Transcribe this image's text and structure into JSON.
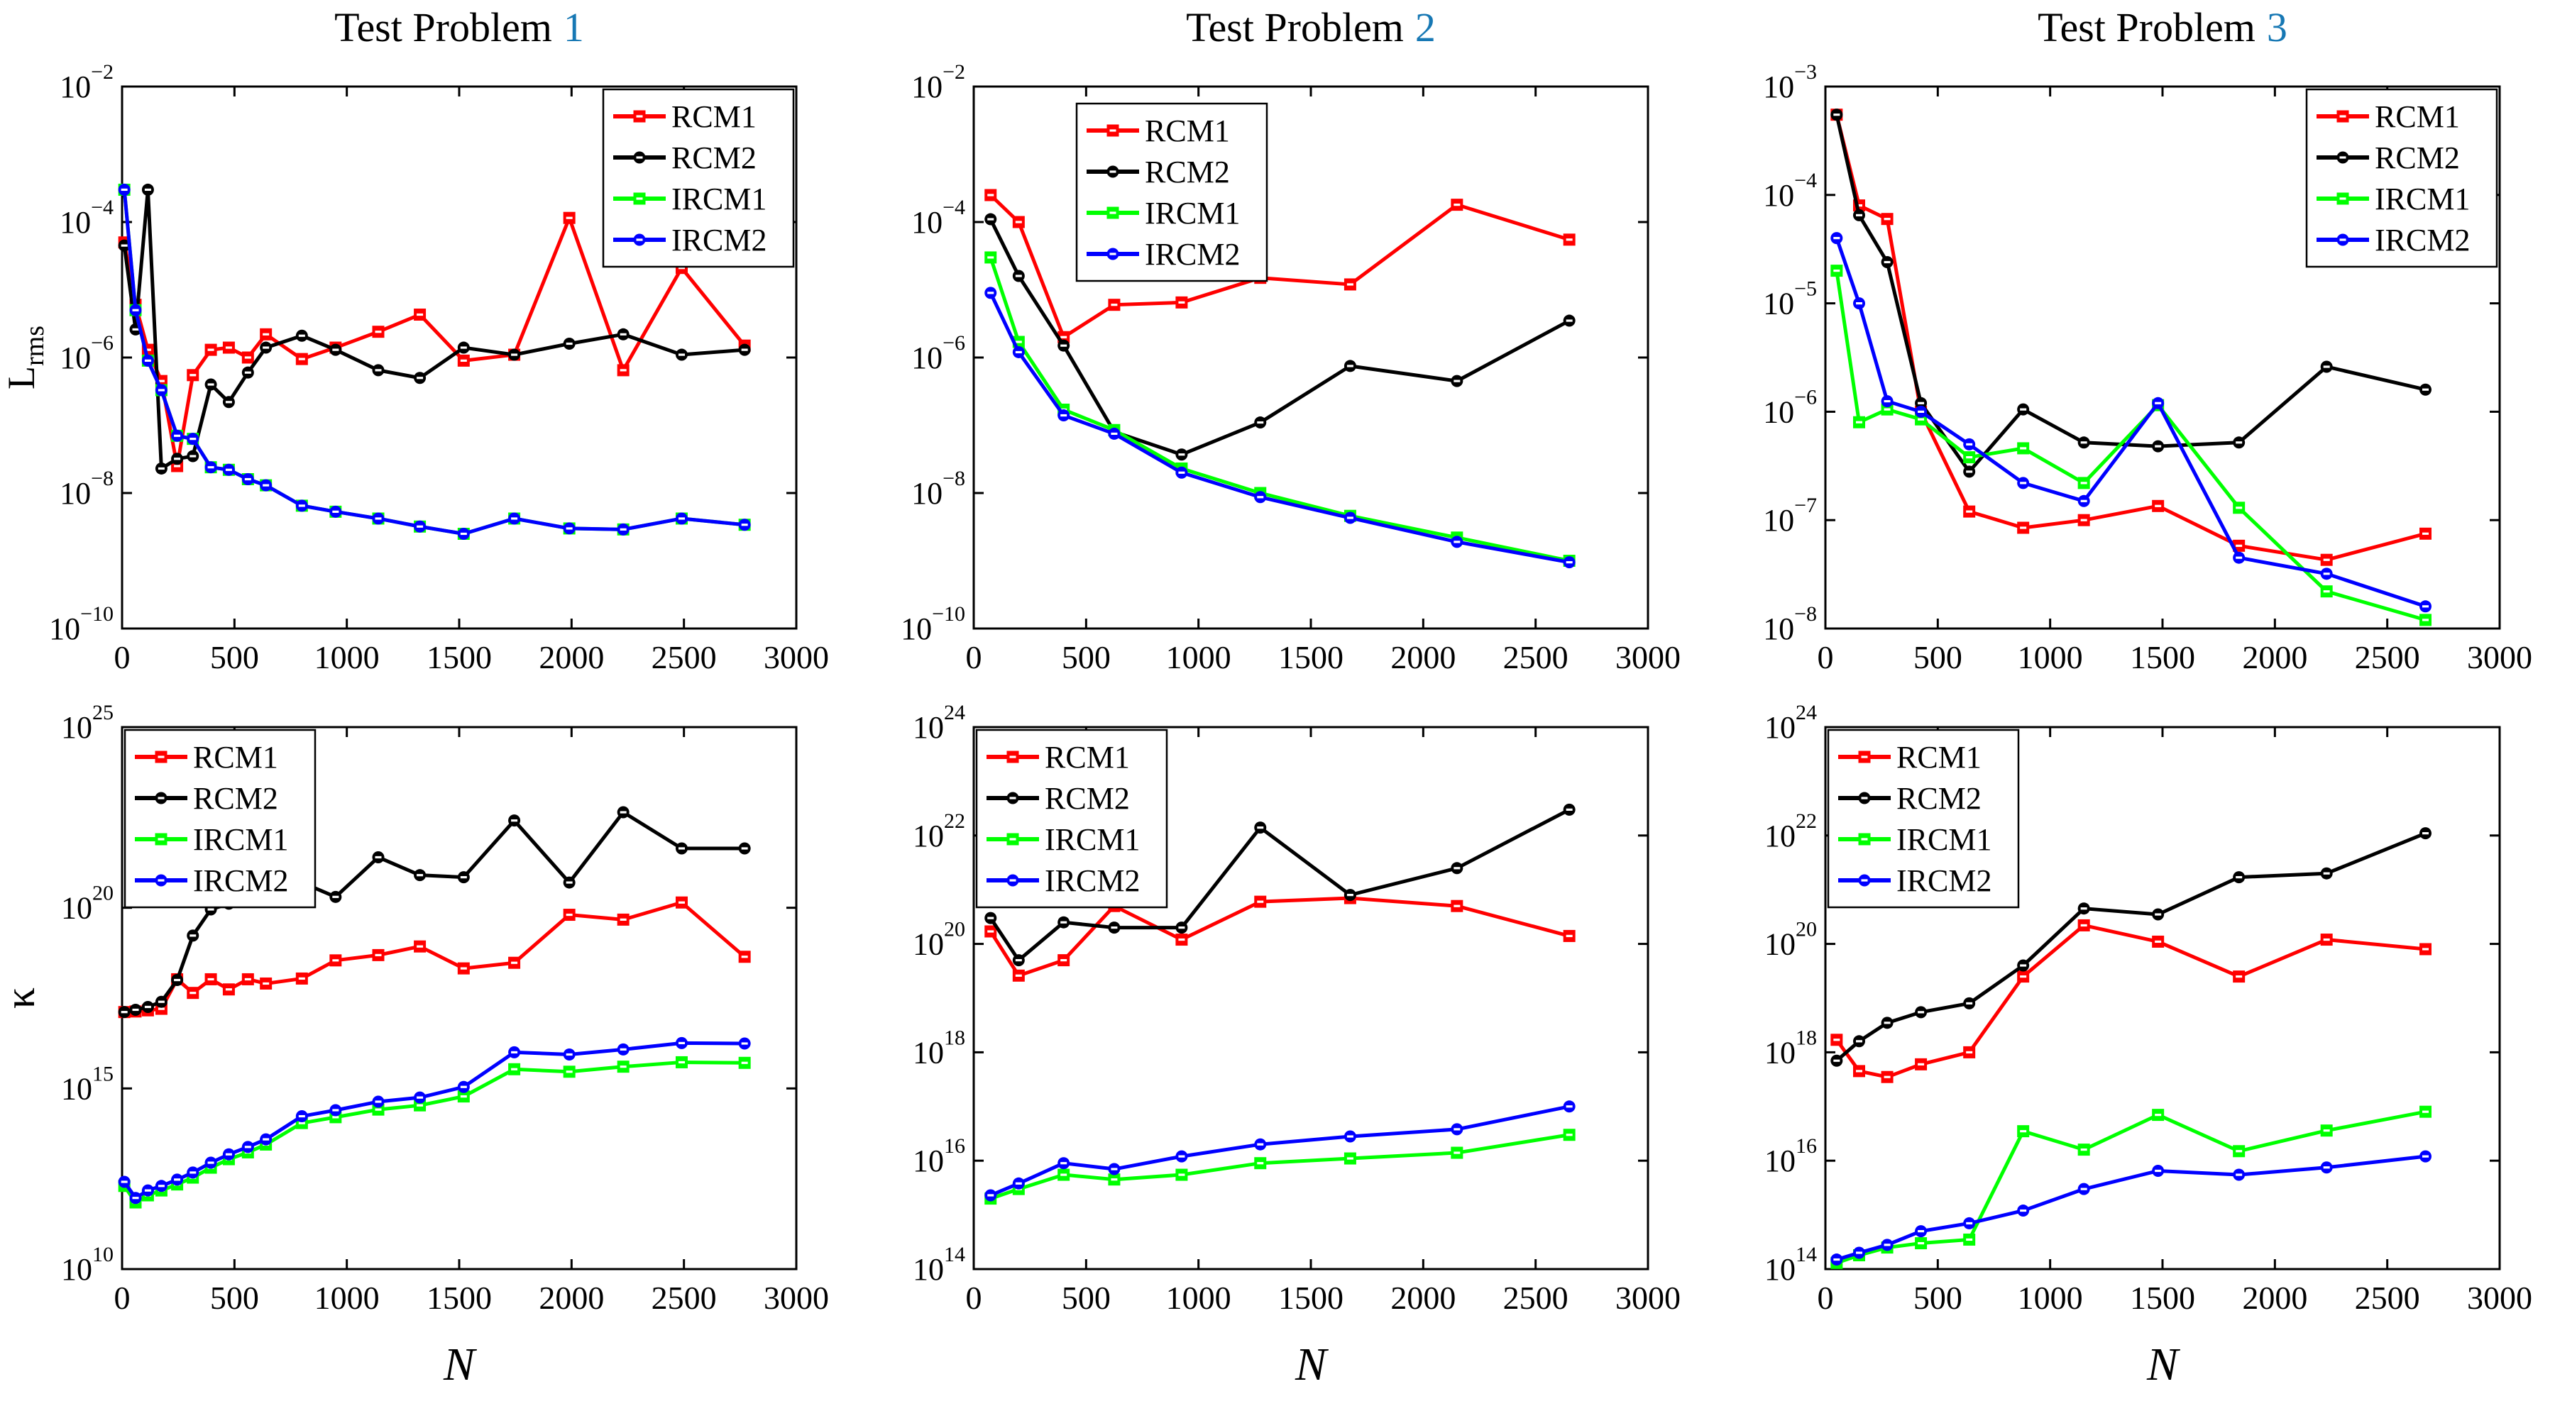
{
  "figure": {
    "background": "#ffffff",
    "accent_blue": "#1778b4",
    "frame_color": "#000000",
    "x_axis_label": "N",
    "row1_ylabel": {
      "main": "L",
      "sub": "rms"
    },
    "row2_ylabel": "κ",
    "legend_labels": [
      "RCM1",
      "RCM2",
      "IRCM1",
      "IRCM2"
    ],
    "series_colors": {
      "RCM1": "#ff0000",
      "RCM2": "#000000",
      "IRCM1": "#00ff00",
      "IRCM2": "#0000ff"
    }
  },
  "chart_data": [
    {
      "type": "line",
      "position": "top-left",
      "title_prefix": "Test Problem",
      "title_number": "1",
      "xlabel": null,
      "ylabel_main": "L",
      "ylabel_sub": "rms",
      "xlim": [
        0,
        3000
      ],
      "xticks": [
        0,
        500,
        1000,
        1500,
        2000,
        2500,
        3000
      ],
      "yscale": "log",
      "ylim": [
        1e-10,
        0.01
      ],
      "ytick_exps": [
        -10,
        -8,
        -6,
        -4,
        -2
      ],
      "legend_position": "top-right",
      "x": [
        10,
        60,
        115,
        175,
        245,
        315,
        395,
        475,
        560,
        640,
        800,
        950,
        1140,
        1325,
        1520,
        1745,
        1990,
        2230,
        2490,
        2770
      ],
      "series": [
        {
          "name": "RCM1",
          "color": "#ff0000",
          "marker": "square",
          "y": [
            5e-05,
            6e-06,
            1.3e-06,
            4.5e-07,
            2.5e-08,
            5.5e-07,
            1.3e-06,
            1.4e-06,
            1e-06,
            2.2e-06,
            9.5e-07,
            1.4e-06,
            2.4e-06,
            4.3e-06,
            9e-07,
            1.1e-06,
            0.000115,
            6.5e-07,
            2.1e-05,
            1.5e-06
          ]
        },
        {
          "name": "RCM2",
          "color": "#000000",
          "marker": "circle",
          "y": [
            4.5e-05,
            2.6e-06,
            0.0003,
            2.3e-08,
            3.2e-08,
            3.5e-08,
            4e-07,
            2.2e-07,
            6e-07,
            1.4e-06,
            2.1e-06,
            1.3e-06,
            6.5e-07,
            5e-07,
            1.4e-06,
            1.1e-06,
            1.6e-06,
            2.2e-06,
            1.1e-06,
            1.3e-06
          ]
        },
        {
          "name": "IRCM1",
          "color": "#00ff00",
          "marker": "square",
          "y": [
            0.0003,
            5e-06,
            9e-07,
            3.3e-07,
            7e-08,
            6.3e-08,
            2.4e-08,
            2.2e-08,
            1.6e-08,
            1.3e-08,
            6.5e-09,
            5.3e-09,
            4.2e-09,
            3.2e-09,
            2.5e-09,
            4.2e-09,
            3e-09,
            2.9e-09,
            4.2e-09,
            3.4e-09
          ]
        },
        {
          "name": "IRCM2",
          "color": "#0000ff",
          "marker": "circle",
          "y": [
            0.0003,
            5e-06,
            9e-07,
            3.3e-07,
            7e-08,
            6.3e-08,
            2.4e-08,
            2.2e-08,
            1.6e-08,
            1.3e-08,
            6.5e-09,
            5.3e-09,
            4.2e-09,
            3.2e-09,
            2.5e-09,
            4.2e-09,
            3e-09,
            2.9e-09,
            4.2e-09,
            3.4e-09
          ]
        }
      ]
    },
    {
      "type": "line",
      "position": "top-middle",
      "title_prefix": "Test Problem",
      "title_number": "2",
      "xlabel": null,
      "ylabel_main": null,
      "ylabel_sub": null,
      "xlim": [
        0,
        3000
      ],
      "xticks": [
        0,
        500,
        1000,
        1500,
        2000,
        2500,
        3000
      ],
      "yscale": "log",
      "ylim": [
        1e-10,
        0.01
      ],
      "ytick_exps": [
        -10,
        -8,
        -6,
        -4,
        -2
      ],
      "legend_position": "top-left-offset",
      "x": [
        75,
        200,
        400,
        625,
        925,
        1275,
        1675,
        2150,
        2650
      ],
      "series": [
        {
          "name": "RCM1",
          "color": "#ff0000",
          "marker": "square",
          "y": [
            0.00025,
            0.0001,
            2e-06,
            6e-06,
            6.5e-06,
            1.5e-05,
            1.2e-05,
            0.00018,
            5.5e-05
          ]
        },
        {
          "name": "RCM2",
          "color": "#000000",
          "marker": "circle",
          "y": [
            0.00011,
            1.6e-05,
            1.5e-06,
            8e-08,
            3.7e-08,
            1.1e-07,
            7.5e-07,
            4.5e-07,
            3.5e-06
          ]
        },
        {
          "name": "IRCM1",
          "color": "#00ff00",
          "marker": "square",
          "y": [
            3e-05,
            1.7e-06,
            1.7e-07,
            8.5e-08,
            2.3e-08,
            1e-08,
            4.6e-09,
            2.2e-09,
            1e-09
          ]
        },
        {
          "name": "IRCM2",
          "color": "#0000ff",
          "marker": "circle",
          "y": [
            9e-06,
            1.2e-06,
            1.4e-07,
            7.5e-08,
            2e-08,
            8.7e-09,
            4.3e-09,
            1.9e-09,
            9.5e-10
          ]
        }
      ]
    },
    {
      "type": "line",
      "position": "top-right",
      "title_prefix": "Test Problem",
      "title_number": "3",
      "xlabel": null,
      "ylabel_main": null,
      "ylabel_sub": null,
      "xlim": [
        0,
        3000
      ],
      "xticks": [
        0,
        500,
        1000,
        1500,
        2000,
        2500,
        3000
      ],
      "yscale": "log",
      "ylim": [
        1e-08,
        0.001
      ],
      "ytick_exps": [
        -8,
        -7,
        -6,
        -5,
        -4,
        -3
      ],
      "legend_position": "top-right",
      "x": [
        50,
        150,
        275,
        425,
        640,
        880,
        1150,
        1480,
        1840,
        2230,
        2670
      ],
      "series": [
        {
          "name": "RCM1",
          "color": "#ff0000",
          "marker": "square",
          "y": [
            0.00055,
            8e-05,
            6e-05,
            1e-06,
            1.2e-07,
            8.5e-08,
            1e-07,
            1.35e-07,
            5.8e-08,
            4.3e-08,
            7.5e-08
          ]
        },
        {
          "name": "RCM2",
          "color": "#000000",
          "marker": "circle",
          "y": [
            0.00055,
            6.5e-05,
            2.4e-05,
            1.2e-06,
            2.8e-07,
            1.05e-06,
            5.2e-07,
            4.8e-07,
            5.2e-07,
            2.6e-06,
            1.6e-06
          ]
        },
        {
          "name": "IRCM1",
          "color": "#00ff00",
          "marker": "square",
          "y": [
            2e-05,
            8e-07,
            1.05e-06,
            8.5e-07,
            3.8e-07,
            4.6e-07,
            2.2e-07,
            1.15e-06,
            1.3e-07,
            2.2e-08,
            1.2e-08
          ]
        },
        {
          "name": "IRCM2",
          "color": "#0000ff",
          "marker": "circle",
          "y": [
            4e-05,
            1e-05,
            1.25e-06,
            1e-06,
            5e-07,
            2.2e-07,
            1.5e-07,
            1.2e-06,
            4.5e-08,
            3.2e-08,
            1.6e-08
          ]
        }
      ]
    },
    {
      "type": "line",
      "position": "bottom-left",
      "title_prefix": null,
      "title_number": null,
      "xlabel": "N",
      "ylabel_main": "κ",
      "ylabel_sub": null,
      "xlim": [
        0,
        3000
      ],
      "xticks": [
        0,
        500,
        1000,
        1500,
        2000,
        2500,
        3000
      ],
      "yscale": "log",
      "ylim": [
        10000000000.0,
        1e+25
      ],
      "ytick_exps": [
        10,
        15,
        20,
        25
      ],
      "legend_position": "top-left",
      "x": [
        10,
        60,
        115,
        175,
        245,
        315,
        395,
        475,
        560,
        640,
        800,
        950,
        1140,
        1325,
        1520,
        1745,
        1990,
        2230,
        2490,
        2770
      ],
      "series": [
        {
          "name": "RCM1",
          "color": "#ff0000",
          "marker": "square",
          "y": [
            1.3e+17,
            1.35e+17,
            1.45e+17,
            1.6e+17,
            1.05e+18,
            4.4e+17,
            1.05e+18,
            5.5e+17,
            1.05e+18,
            8e+17,
            1.1e+18,
            3.5e+18,
            4.9e+18,
            8.5e+18,
            2.1e+18,
            3e+18,
            6.4e+19,
            4.7e+19,
            1.4e+20,
            4.4e+18
          ]
        },
        {
          "name": "RCM2",
          "color": "#000000",
          "marker": "circle",
          "y": [
            1.3e+17,
            1.5e+17,
            1.8e+17,
            2.5e+17,
            1e+18,
            1.7e+19,
            9e+19,
            1.3e+20,
            1.8e+20,
            2.5e+20,
            5e+20,
            2e+20,
            2.5e+21,
            8e+20,
            7e+20,
            2.6e+22,
            5e+20,
            4.4e+22,
            4.4e+21,
            4.4e+21
          ]
        },
        {
          "name": "IRCM1",
          "color": "#00ff00",
          "marker": "square",
          "y": [
            2000000000000.0,
            700000000000.0,
            1100000000000.0,
            1500000000000.0,
            2200000000000.0,
            3400000000000.0,
            6400000000000.0,
            11000000000000.0,
            17000000000000.0,
            28000000000000.0,
            110000000000000.0,
            160000000000000.0,
            260000000000000.0,
            340000000000000.0,
            600000000000000.0,
            3400000000000000.0,
            2900000000000000.0,
            4000000000000000.0,
            5300000000000000.0,
            5100000000000000.0
          ]
        },
        {
          "name": "IRCM2",
          "color": "#0000ff",
          "marker": "circle",
          "y": [
            2600000000000.0,
            930000000000.0,
            1500000000000.0,
            2000000000000.0,
            3000000000000.0,
            4700000000000.0,
            8800000000000.0,
            15000000000000.0,
            24000000000000.0,
            39000000000000.0,
            170000000000000.0,
            250000000000000.0,
            430000000000000.0,
            560000000000000.0,
            1100000000000000.0,
            1e+16,
            8700000000000000.0,
            1.2e+16,
            1.8e+16,
            1.75e+16
          ]
        }
      ]
    },
    {
      "type": "line",
      "position": "bottom-middle",
      "title_prefix": null,
      "title_number": null,
      "xlabel": "N",
      "ylabel_main": null,
      "ylabel_sub": null,
      "xlim": [
        0,
        3000
      ],
      "xticks": [
        0,
        500,
        1000,
        1500,
        2000,
        2500,
        3000
      ],
      "yscale": "log",
      "ylim": [
        100000000000000.0,
        1e+24
      ],
      "ytick_exps": [
        14,
        16,
        18,
        20,
        22,
        24
      ],
      "legend_position": "top-left",
      "x": [
        75,
        200,
        400,
        625,
        925,
        1275,
        1675,
        2150,
        2650
      ],
      "series": [
        {
          "name": "RCM1",
          "color": "#ff0000",
          "marker": "square",
          "y": [
            1.7e+20,
            2.6e+19,
            5e+19,
            5e+20,
            1.2e+20,
            6e+20,
            7e+20,
            5e+20,
            1.4e+20
          ]
        },
        {
          "name": "RCM2",
          "color": "#000000",
          "marker": "circle",
          "y": [
            3e+20,
            5e+19,
            2.5e+20,
            2e+20,
            2e+20,
            1.4e+22,
            8e+20,
            2.5e+21,
            3e+22
          ]
        },
        {
          "name": "IRCM1",
          "color": "#00ff00",
          "marker": "square",
          "y": [
            2000000000000000.0,
            3000000000000000.0,
            5500000000000000.0,
            4500000000000000.0,
            5500000000000000.0,
            9000000000000000.0,
            1.1e+16,
            1.4e+16,
            3e+16
          ]
        },
        {
          "name": "IRCM2",
          "color": "#0000ff",
          "marker": "circle",
          "y": [
            2300000000000000.0,
            3800000000000000.0,
            9000000000000000.0,
            7000000000000000.0,
            1.2e+16,
            2e+16,
            2.8e+16,
            3.8e+16,
            1e+17
          ]
        }
      ]
    },
    {
      "type": "line",
      "position": "bottom-right",
      "title_prefix": null,
      "title_number": null,
      "xlabel": "N",
      "ylabel_main": null,
      "ylabel_sub": null,
      "xlim": [
        0,
        3000
      ],
      "xticks": [
        0,
        500,
        1000,
        1500,
        2000,
        2500,
        3000
      ],
      "yscale": "log",
      "ylim": [
        100000000000000.0,
        1e+24
      ],
      "ytick_exps": [
        14,
        16,
        18,
        20,
        22,
        24
      ],
      "legend_position": "top-left",
      "x": [
        50,
        150,
        275,
        425,
        640,
        880,
        1150,
        1480,
        1840,
        2230,
        2670
      ],
      "series": [
        {
          "name": "RCM1",
          "color": "#ff0000",
          "marker": "square",
          "y": [
            1.7e+18,
            4.5e+17,
            3.5e+17,
            6e+17,
            1e+18,
            2.5e+19,
            2.2e+20,
            1.1e+20,
            2.5e+19,
            1.2e+20,
            8e+19
          ]
        },
        {
          "name": "RCM2",
          "color": "#000000",
          "marker": "circle",
          "y": [
            7e+17,
            1.6e+18,
            3.5e+18,
            5.5e+18,
            8e+18,
            4e+19,
            4.5e+20,
            3.5e+20,
            1.7e+21,
            2e+21,
            1.1e+22
          ]
        },
        {
          "name": "IRCM1",
          "color": "#00ff00",
          "marker": "square",
          "y": [
            130000000000000.0,
            180000000000000.0,
            250000000000000.0,
            300000000000000.0,
            350000000000000.0,
            3.5e+16,
            1.6e+16,
            7e+16,
            1.5e+16,
            3.6e+16,
            8e+16
          ]
        },
        {
          "name": "IRCM2",
          "color": "#0000ff",
          "marker": "circle",
          "y": [
            150000000000000.0,
            200000000000000.0,
            280000000000000.0,
            500000000000000.0,
            700000000000000.0,
            1200000000000000.0,
            3000000000000000.0,
            6500000000000000.0,
            5500000000000000.0,
            7500000000000000.0,
            1.2e+16
          ]
        }
      ]
    }
  ]
}
